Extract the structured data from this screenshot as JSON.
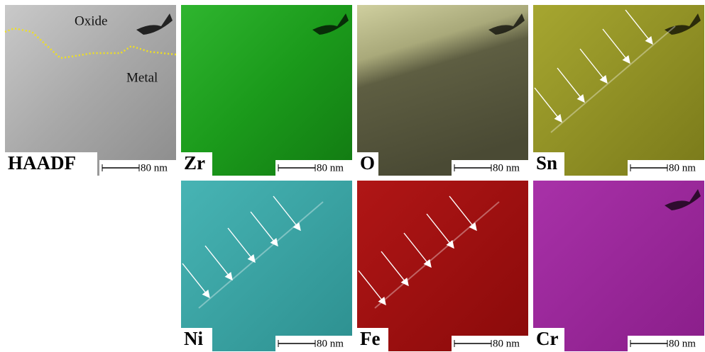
{
  "panels": [
    {
      "label": "HAADF",
      "scale_bar": "80 nm"
    },
    {
      "label": "Zr",
      "scale_bar": "80 nm"
    },
    {
      "label": "O",
      "scale_bar": "80 nm"
    },
    {
      "label": "Sn",
      "scale_bar": "80 nm"
    },
    {
      "label": "Ni",
      "scale_bar": "80 nm"
    },
    {
      "label": "Fe",
      "scale_bar": "80 nm"
    },
    {
      "label": "Cr",
      "scale_bar": "80 nm"
    }
  ],
  "annotations": {
    "oxide": "Oxide",
    "metal": "Metal"
  }
}
